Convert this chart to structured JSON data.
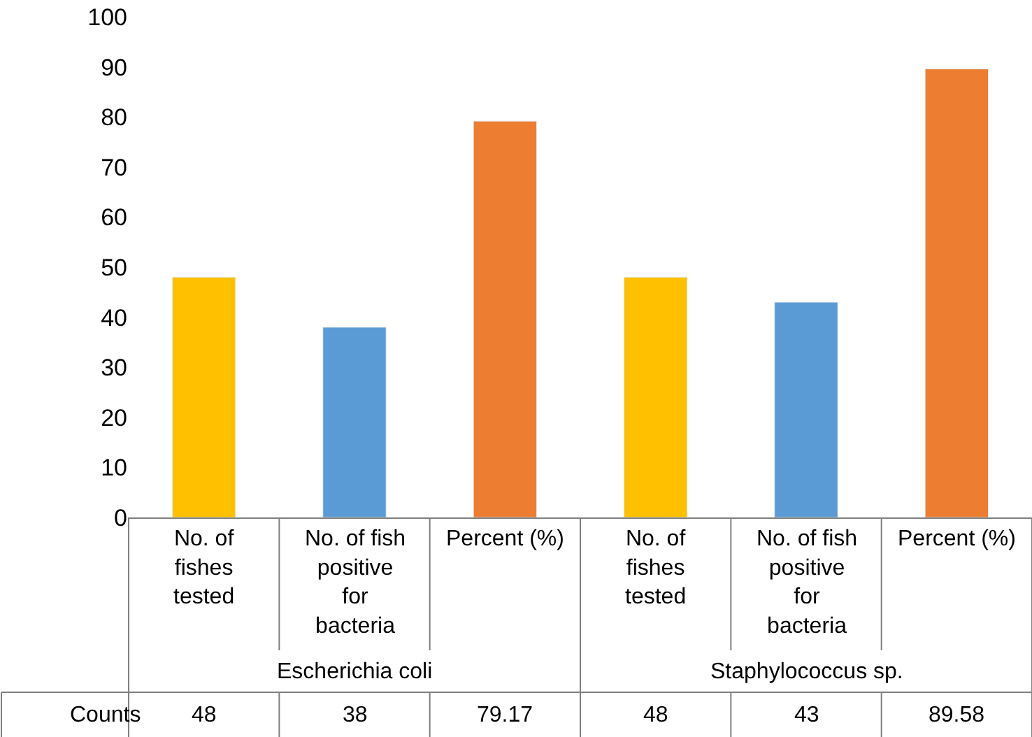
{
  "chart_data": {
    "type": "bar",
    "categories": [
      "No. of fishes tested",
      "No. of fish positive for bacteria",
      "Percent (%)",
      "No. of fishes tested",
      "No. of fish positive for bacteria",
      "Percent (%)"
    ],
    "series": [
      {
        "name": "Counts",
        "colors": [
          "#ffc000",
          "#5b9bd5",
          "#ed7d31",
          "#ffc000",
          "#5b9bd5",
          "#ed7d31"
        ],
        "values": [
          48,
          38,
          79.17,
          48,
          43,
          89.58
        ]
      }
    ],
    "annotations": [
      "Escherichia coli",
      "Staphylococcus sp."
    ],
    "ylim": [
      0,
      100
    ],
    "yticks": [
      0,
      10,
      20,
      30,
      40,
      50,
      60,
      70,
      80,
      90,
      100
    ],
    "legend": false,
    "data_labels": true
  }
}
